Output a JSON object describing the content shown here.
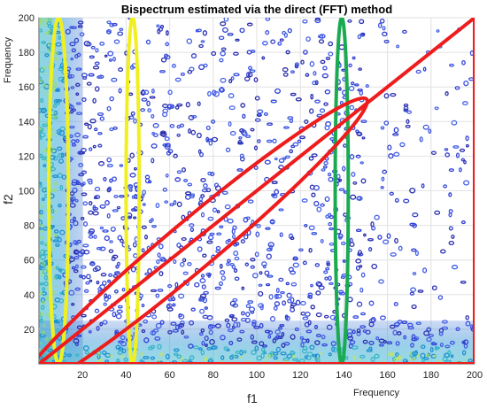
{
  "chart_data": {
    "type": "heatmap",
    "title": "Bispectrum estimated via the direct (FFT) method",
    "xlabel": "f1",
    "ylabel": "f2",
    "x_unit_label": "Frequency",
    "y_unit_label": "Frequency",
    "xlim": [
      0,
      200
    ],
    "ylim": [
      0,
      200
    ],
    "xticks": [
      20,
      40,
      60,
      80,
      100,
      120,
      140,
      160,
      180,
      200
    ],
    "yticks": [
      20,
      40,
      60,
      80,
      100,
      120,
      140,
      160,
      180,
      200
    ],
    "grid": true,
    "colormap": "parula-like contour (blue to yellow)",
    "dense_bands": {
      "low_f1_columns": [
        0,
        20
      ],
      "low_f2_rows": [
        0,
        25
      ]
    },
    "annotations": [
      {
        "shape": "ellipse",
        "color": "#f0f020",
        "center": [
          9,
          100
        ],
        "semi_axes": [
          4.5,
          100
        ],
        "angle_deg": 0
      },
      {
        "shape": "ellipse",
        "color": "#f0f020",
        "center": [
          43,
          100
        ],
        "semi_axes": [
          3,
          100
        ],
        "angle_deg": 0
      },
      {
        "shape": "ellipse",
        "color": "#1aaa50",
        "center": [
          139,
          100
        ],
        "semi_axes": [
          3,
          100
        ],
        "angle_deg": 0
      },
      {
        "shape": "ellipse",
        "color": "#ee1c1c",
        "center": [
          70,
          68
        ],
        "semi_axes": [
          105,
          14
        ],
        "angle_deg": -40
      },
      {
        "shape": "line",
        "color": "#ee1c1c",
        "from": [
          0,
          0
        ],
        "to": [
          200,
          200
        ]
      },
      {
        "shape": "line",
        "color": "#ee1c1c",
        "from": [
          0,
          0
        ],
        "to": [
          200,
          0
        ]
      },
      {
        "shape": "line",
        "color": "#ee1c1c",
        "from": [
          200,
          0
        ],
        "to": [
          200,
          200
        ]
      }
    ]
  }
}
